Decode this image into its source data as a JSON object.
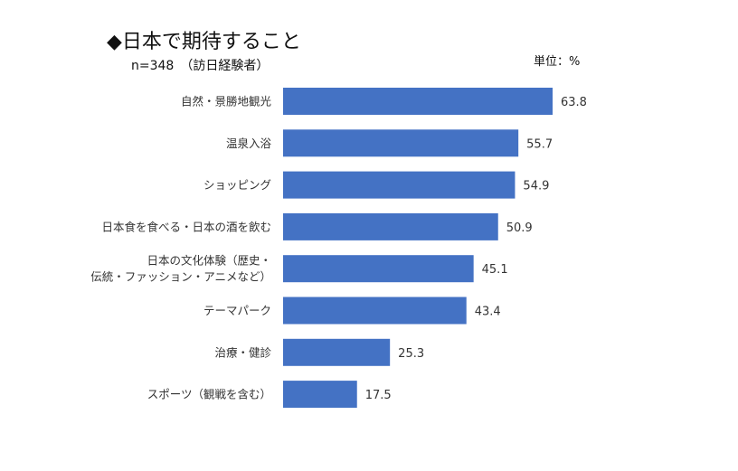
{
  "chart_data": {
    "type": "bar",
    "orientation": "horizontal",
    "title": "◆日本で期待すること",
    "subtitle": "n=348　（訪日経験者）",
    "unit_label": "単位：%",
    "categories": [
      "自然・景勝地観光",
      "温泉入浴",
      "ショッピング",
      "日本食を食べる・日本の酒を飲む",
      "日本の文化体験（歴史・伝統・ファッション・アニメなど）",
      "テーマパーク",
      "治療・健診",
      "スポーツ（観戦を含む）"
    ],
    "category_lines": [
      [
        "自然・景勝地観光"
      ],
      [
        "温泉入浴"
      ],
      [
        "ショッピング"
      ],
      [
        "日本食を食べる・日本の酒を飲む"
      ],
      [
        "日本の文化体験（歴史・",
        "伝統・ファッション・アニメなど）"
      ],
      [
        "テーマパーク"
      ],
      [
        "治療・健診"
      ],
      [
        "スポーツ（観戦を含む）"
      ]
    ],
    "values": [
      63.8,
      55.7,
      54.9,
      50.9,
      45.1,
      43.4,
      25.3,
      17.5
    ],
    "value_labels": [
      "63.8",
      "55.7",
      "54.9",
      "50.9",
      "45.1",
      "43.4",
      "25.3",
      "17.5"
    ],
    "xlim": [
      0,
      63.8
    ],
    "bar_color": "#4472C4",
    "grid": false,
    "legend": "none"
  }
}
